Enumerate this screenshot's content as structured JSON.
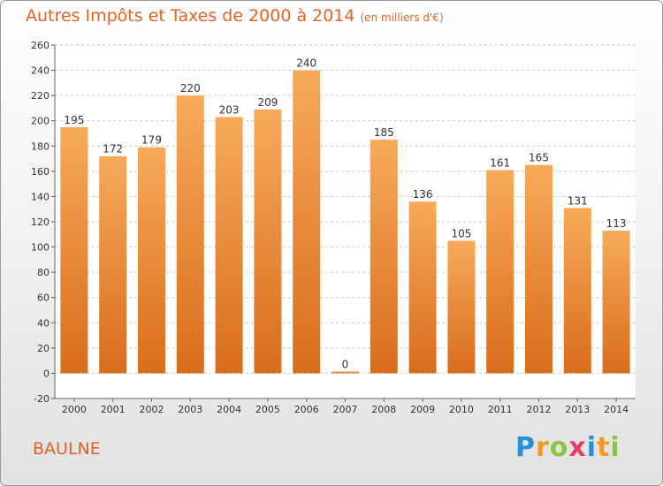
{
  "title": "Autres Impôts et Taxes de 2000 à 2014",
  "subtitle": "(en milliers d'€)",
  "location": "BAULNE",
  "logo": {
    "letters": [
      "P",
      "r",
      "o",
      "x",
      "i",
      "t",
      "i"
    ],
    "colors": [
      "#2a8fd6",
      "#f29a1f",
      "#8cc63f",
      "#e83b6a",
      "#2a8fd6",
      "#f29a1f",
      "#8cc63f"
    ]
  },
  "colors": {
    "bar_light": "#f7aa5a",
    "bar_dark": "#d86d1c",
    "grid": "#c9c9c9",
    "title": "#e0632a"
  },
  "chart_data": {
    "type": "bar",
    "title": "Autres Impôts et Taxes de 2000 à 2014",
    "subtitle": "(en milliers d'€)",
    "xlabel": "",
    "ylabel": "",
    "categories": [
      "2000",
      "2001",
      "2002",
      "2003",
      "2004",
      "2005",
      "2006",
      "2007",
      "2008",
      "2009",
      "2010",
      "2011",
      "2012",
      "2013",
      "2014"
    ],
    "values": [
      195,
      172,
      179,
      220,
      203,
      209,
      240,
      0,
      185,
      136,
      105,
      161,
      165,
      131,
      113
    ],
    "ylim": [
      -20,
      260
    ],
    "yticks": [
      -20,
      0,
      20,
      40,
      60,
      80,
      100,
      120,
      140,
      160,
      180,
      200,
      220,
      240,
      260
    ],
    "grid": true,
    "legend": "none"
  }
}
